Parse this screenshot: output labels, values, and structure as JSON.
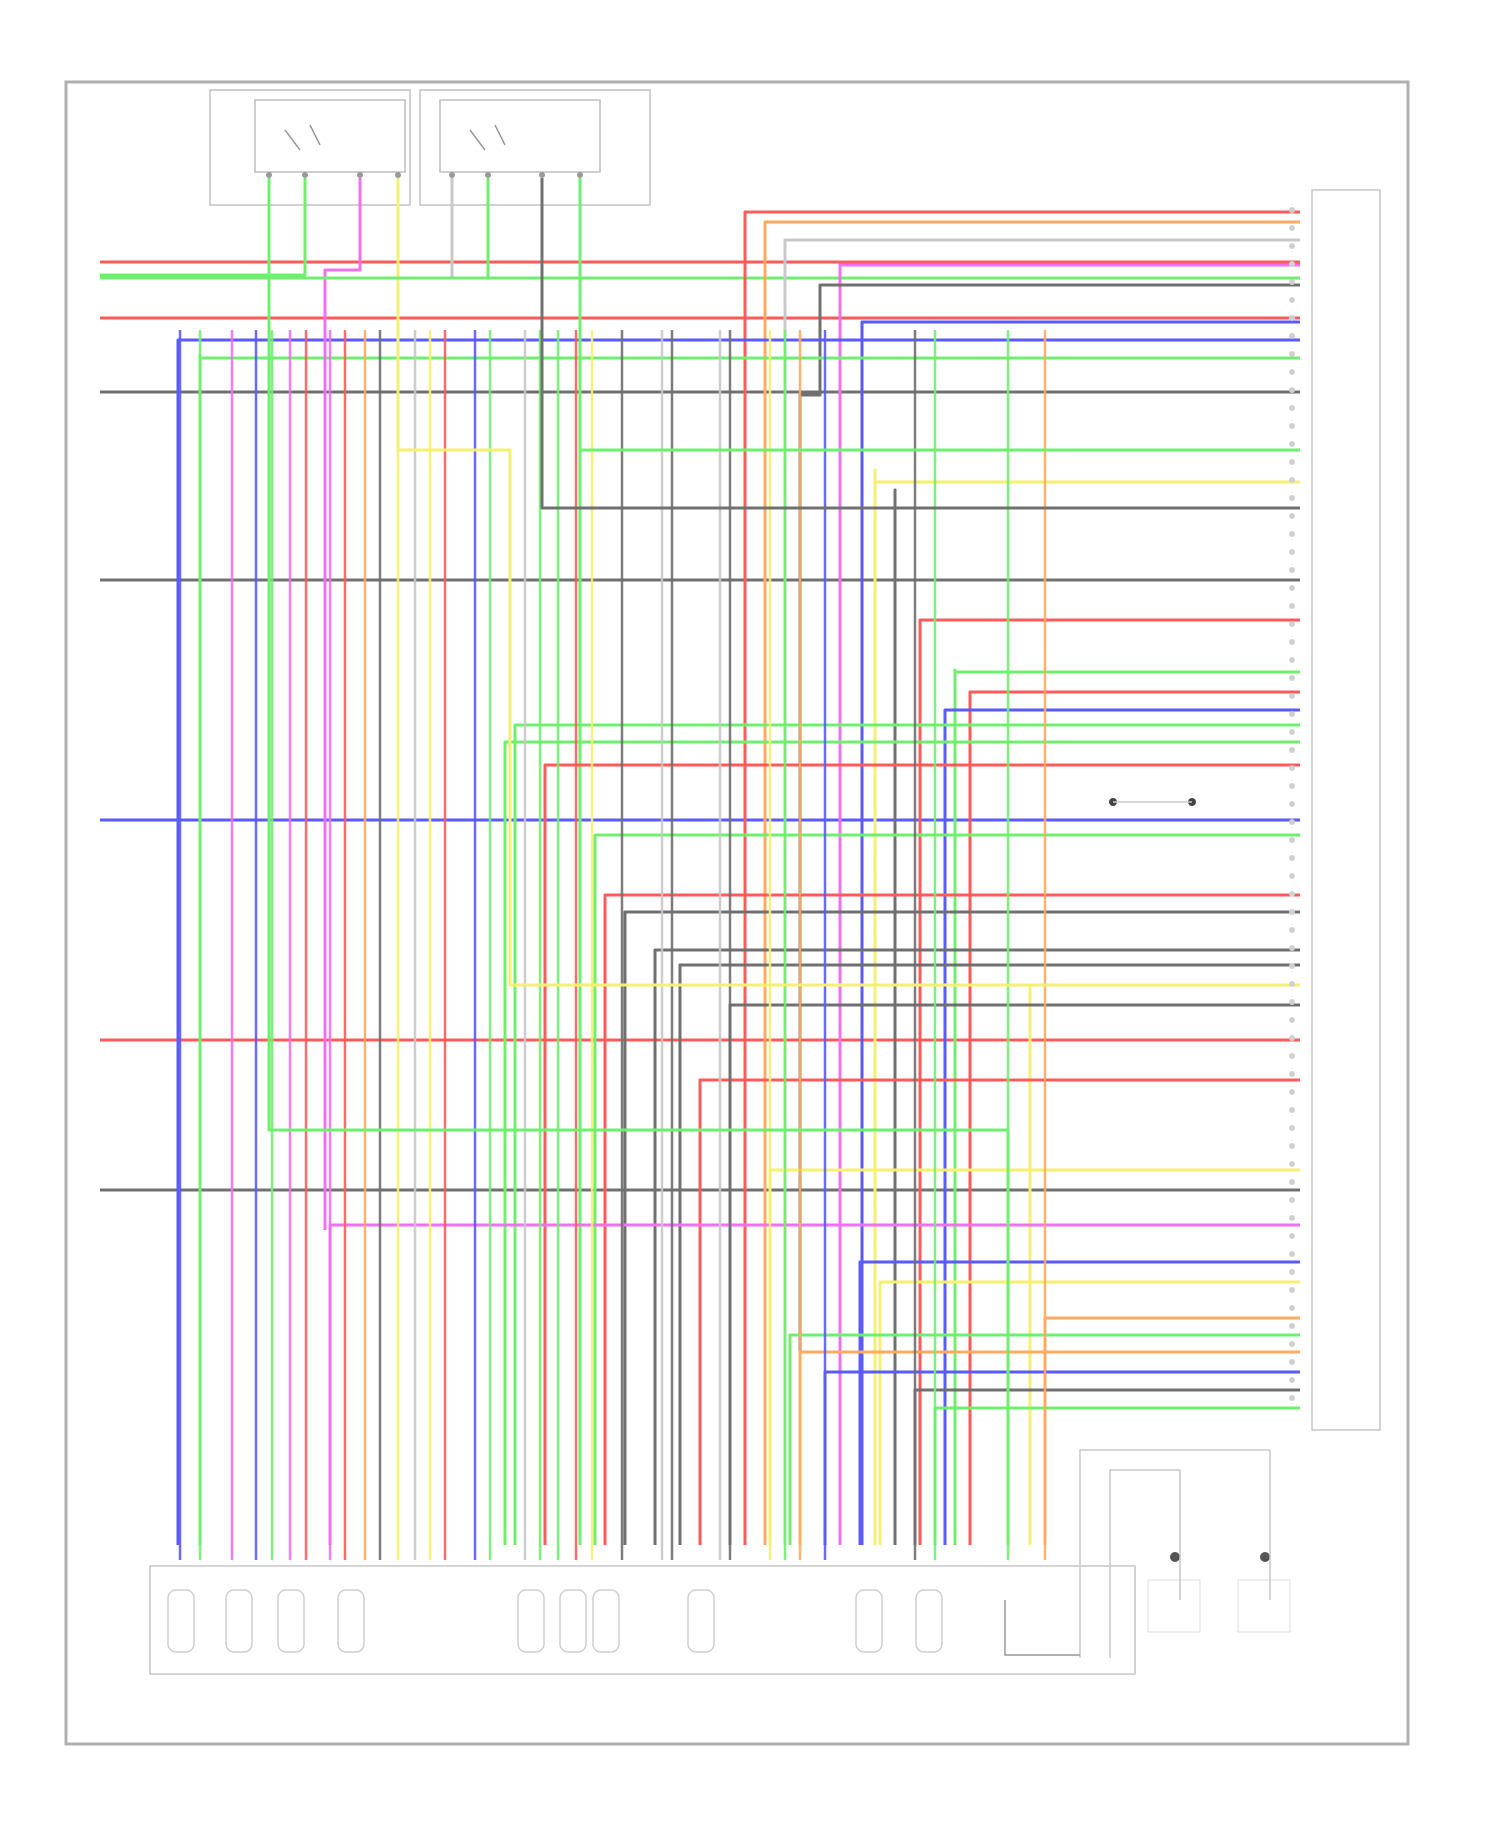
{
  "diagram": {
    "title": "",
    "footer_code": "",
    "components": {
      "switch_left": {
        "label": ""
      },
      "switch_right": {
        "label": ""
      },
      "right_connector": {
        "label": ""
      },
      "bottom_module": {
        "label": ""
      },
      "sensor_a": {
        "label": ""
      },
      "sensor_b": {
        "label": ""
      },
      "ground_junction": {
        "label": ""
      }
    }
  },
  "colors": {
    "red": "#ff5a5a",
    "green": "#6ef06e",
    "blue": "#5a5aff",
    "magenta": "#f070f0",
    "yellow": "#f5f070",
    "orange": "#ffaa60",
    "gray": "#707070",
    "light_gray": "#c8c8c8",
    "frame": "#b0b0b0"
  }
}
